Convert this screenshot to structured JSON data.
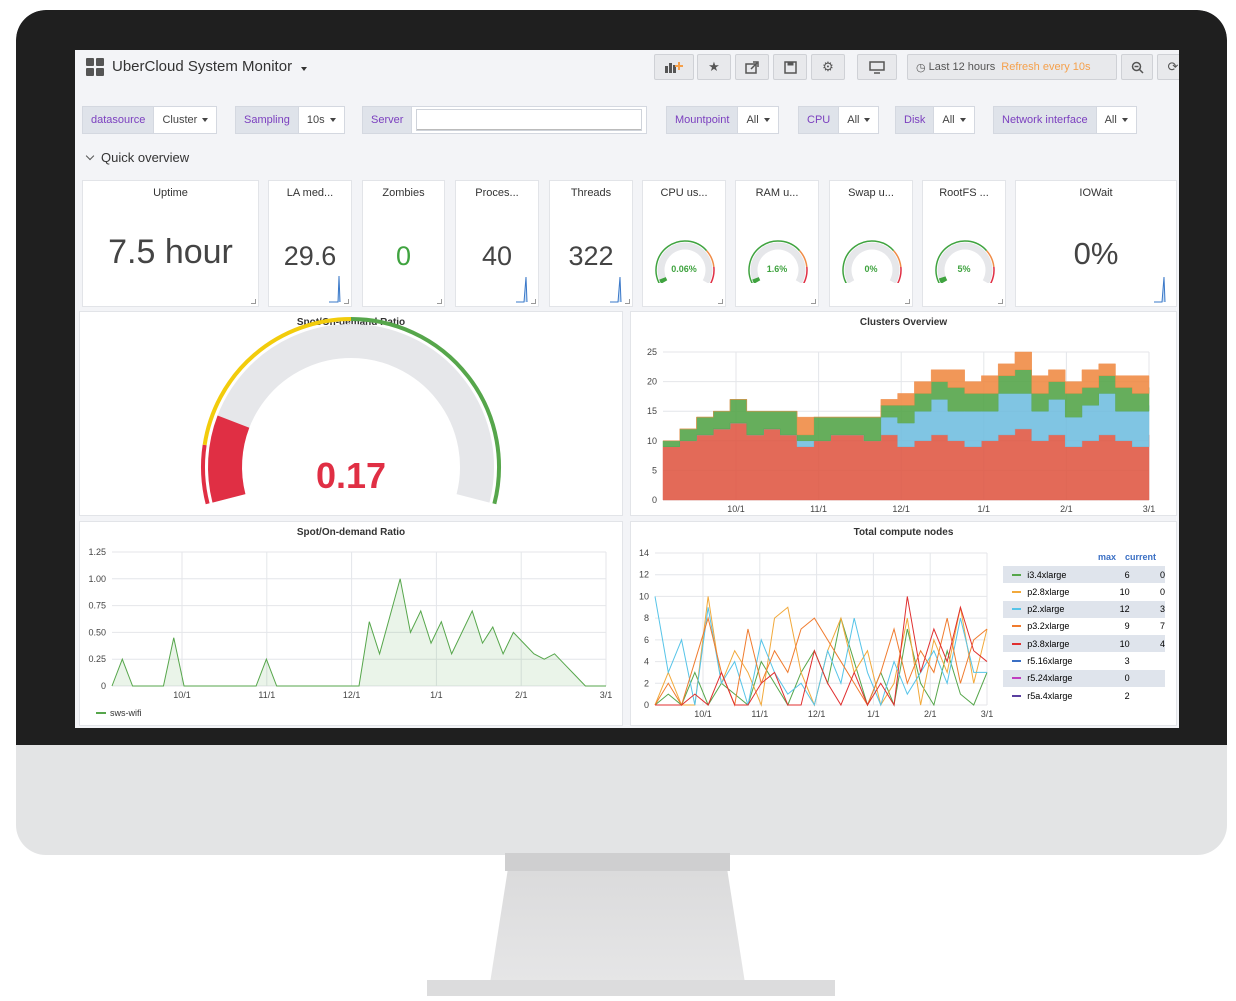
{
  "app": {
    "title": "UberCloud System Monitor"
  },
  "toolbar": {
    "time_range": "Last 12 hours",
    "refresh": "Refresh every 10s"
  },
  "variables": [
    {
      "label": "datasource",
      "value": "Cluster"
    },
    {
      "label": "Sampling",
      "value": "10s"
    },
    {
      "label": "Server",
      "value": ""
    },
    {
      "label": "Mountpoint",
      "value": "All"
    },
    {
      "label": "CPU",
      "value": "All"
    },
    {
      "label": "Disk",
      "value": "All"
    },
    {
      "label": "Network interface",
      "value": "All"
    }
  ],
  "row": {
    "title": "Quick overview"
  },
  "stats": {
    "uptime": {
      "title": "Uptime",
      "value": "7.5 hour"
    },
    "la": {
      "title": "LA med...",
      "value": "29.6"
    },
    "zombies": {
      "title": "Zombies",
      "value": "0"
    },
    "processes": {
      "title": "Proces...",
      "value": "40"
    },
    "threads": {
      "title": "Threads",
      "value": "322"
    },
    "cpu": {
      "title": "CPU us...",
      "value": "0.06%",
      "level": 0.0006
    },
    "ram": {
      "title": "RAM u...",
      "value": "1.6%",
      "level": 0.016
    },
    "swap": {
      "title": "Swap u...",
      "value": "0%",
      "level": 0
    },
    "rootfs": {
      "title": "RootFS ...",
      "value": "5%",
      "level": 0.05
    },
    "iowait": {
      "title": "IOWait",
      "value": "0%"
    }
  },
  "colors": {
    "red": "#e02f44",
    "yellow": "#f2cc0c",
    "green": "#56a64b",
    "orange": "#f08c47",
    "cyan": "#73bfe0",
    "gauge_green": "#3fa33f"
  },
  "chart_data": [
    {
      "type": "gauge",
      "title": "Spot/On-demand Ratio",
      "value": 0.17,
      "value_label": "0.17",
      "range": [
        0,
        1
      ],
      "thresholds": [
        {
          "to": 0.11,
          "color": "#e02f44"
        },
        {
          "to": 0.5,
          "color": "#f2cc0c"
        },
        {
          "to": 1,
          "color": "#56a64b"
        }
      ]
    },
    {
      "type": "area",
      "title": "Clusters Overview",
      "stacked": true,
      "ylim": [
        0,
        25
      ],
      "yticks": [
        "0",
        "5",
        "10",
        "15",
        "20",
        "25"
      ],
      "xticks": [
        "10/1",
        "11/1",
        "12/1",
        "1/1",
        "2/1",
        "3/1"
      ],
      "series": [
        {
          "color": "#e05a47",
          "values": [
            9,
            10,
            11,
            12,
            13,
            11,
            12,
            11,
            9,
            10,
            11,
            11,
            10,
            11,
            9,
            10,
            11,
            10,
            9,
            10,
            11,
            12,
            10,
            11,
            9,
            10,
            11,
            10,
            9,
            11
          ]
        },
        {
          "color": "#73bfe0",
          "values": [
            0,
            0,
            0,
            0,
            0,
            0,
            0,
            0,
            1,
            0,
            0,
            0,
            0,
            3,
            4,
            5,
            6,
            5,
            6,
            5,
            7,
            6,
            5,
            6,
            5,
            6,
            7,
            5,
            6,
            5
          ]
        },
        {
          "color": "#56a64b",
          "values": [
            1,
            2,
            3,
            3,
            4,
            4,
            3,
            4,
            1,
            4,
            3,
            3,
            4,
            2,
            3,
            3,
            3,
            4,
            3,
            3,
            3,
            4,
            3,
            3,
            4,
            3,
            3,
            4,
            3,
            3
          ]
        },
        {
          "color": "#f08c47",
          "values": [
            0,
            0,
            0,
            0,
            0,
            0,
            0,
            0,
            3,
            0,
            0,
            0,
            0,
            1,
            2,
            2,
            2,
            3,
            2,
            3,
            2,
            3,
            3,
            2,
            2,
            3,
            2,
            2,
            3,
            2
          ]
        }
      ]
    },
    {
      "type": "line",
      "title": "Spot/On-demand Ratio",
      "ylim": [
        0,
        1.25
      ],
      "yticks": [
        "0",
        "0.25",
        "0.50",
        "0.75",
        "1.00",
        "1.25"
      ],
      "xticks": [
        "10/1",
        "11/1",
        "12/1",
        "1/1",
        "2/1",
        "3/1"
      ],
      "series": [
        {
          "name": "sws-wifi",
          "color": "#56a64b",
          "values": [
            0,
            0.25,
            0,
            0,
            0,
            0,
            0.45,
            0,
            0,
            0,
            0,
            0,
            0,
            0,
            0,
            0.25,
            0,
            0,
            0,
            0,
            0,
            0,
            0,
            0,
            0,
            0.6,
            0.3,
            0.65,
            1.0,
            0.5,
            0.7,
            0.4,
            0.6,
            0.3,
            0.5,
            0.7,
            0.4,
            0.55,
            0.3,
            0.5,
            0.4,
            0.3,
            0.25,
            0.3,
            0.2,
            0.1,
            0,
            0,
            0
          ]
        }
      ]
    },
    {
      "type": "line",
      "title": "Total compute nodes",
      "ylim": [
        0,
        14
      ],
      "yticks": [
        "0",
        "2",
        "4",
        "6",
        "8",
        "10",
        "12",
        "14"
      ],
      "xticks": [
        "10/1",
        "11/1",
        "12/1",
        "1/1",
        "2/1",
        "3/1"
      ],
      "legend_headers": {
        "max": "max",
        "current": "current"
      },
      "series": [
        {
          "name": "i3.4xlarge",
          "color": "#56a64b",
          "max": "6",
          "current": "0"
        },
        {
          "name": "p2.8xlarge",
          "color": "#f2a93b",
          "max": "10",
          "current": "0"
        },
        {
          "name": "p2.xlarge",
          "color": "#56c4e8",
          "max": "12",
          "current": "3"
        },
        {
          "name": "p3.2xlarge",
          "color": "#f07b2e",
          "max": "9",
          "current": "7"
        },
        {
          "name": "p3.8xlarge",
          "color": "#e02f2f",
          "max": "10",
          "current": "4"
        },
        {
          "name": "r5.16xlarge",
          "color": "#3a6fc4",
          "max": "3",
          "current": ""
        },
        {
          "name": "r5.24xlarge",
          "color": "#c03fc0",
          "max": "0",
          "current": ""
        },
        {
          "name": "r5a.4xlarge",
          "color": "#5a3fa0",
          "max": "2",
          "current": ""
        }
      ]
    }
  ]
}
